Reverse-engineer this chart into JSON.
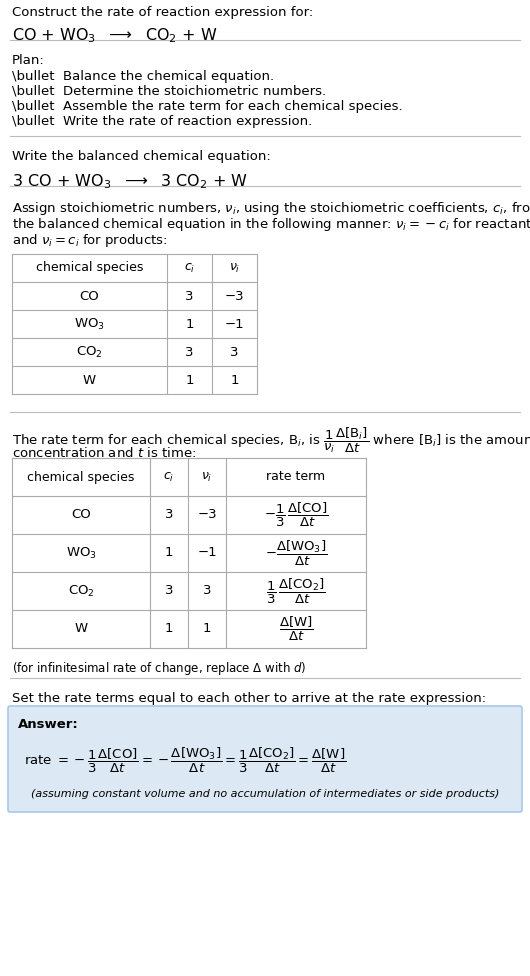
{
  "title_line1": "Construct the rate of reaction expression for:",
  "title_line2": "CO + WO$_3$  $\\longrightarrow$  CO$_2$ + W",
  "plan_header": "Plan:",
  "plan_items": [
    "\\bullet  Balance the chemical equation.",
    "\\bullet  Determine the stoichiometric numbers.",
    "\\bullet  Assemble the rate term for each chemical species.",
    "\\bullet  Write the rate of reaction expression."
  ],
  "balanced_header": "Write the balanced chemical equation:",
  "balanced_eq": "3 CO + WO$_3$  $\\longrightarrow$  3 CO$_2$ + W",
  "stoich_intro_lines": [
    "Assign stoichiometric numbers, $\\nu_i$, using the stoichiometric coefficients, $c_i$, from",
    "the balanced chemical equation in the following manner: $\\nu_i = -c_i$ for reactants",
    "and $\\nu_i = c_i$ for products:"
  ],
  "table1_headers": [
    "chemical species",
    "$c_i$",
    "$\\nu_i$"
  ],
  "table1_rows": [
    [
      "CO",
      "3",
      "−3"
    ],
    [
      "WO$_3$",
      "1",
      "−1"
    ],
    [
      "CO$_2$",
      "3",
      "3"
    ],
    [
      "W",
      "1",
      "1"
    ]
  ],
  "rate_intro_line1": "The rate term for each chemical species, B$_i$, is $\\dfrac{1}{\\nu_i}\\dfrac{\\Delta[\\mathrm{B}_i]}{\\Delta t}$ where [B$_i$] is the amount",
  "rate_intro_line2": "concentration and $t$ is time:",
  "table2_headers": [
    "chemical species",
    "$c_i$",
    "$\\nu_i$",
    "rate term"
  ],
  "table2_rows": [
    [
      "CO",
      "3",
      "−3",
      "$-\\dfrac{1}{3}\\,\\dfrac{\\Delta[\\mathrm{CO}]}{\\Delta t}$"
    ],
    [
      "WO$_3$",
      "1",
      "−1",
      "$-\\dfrac{\\Delta[\\mathrm{WO_3}]}{\\Delta t}$"
    ],
    [
      "CO$_2$",
      "3",
      "3",
      "$\\dfrac{1}{3}\\,\\dfrac{\\Delta[\\mathrm{CO_2}]}{\\Delta t}$"
    ],
    [
      "W",
      "1",
      "1",
      "$\\dfrac{\\Delta[\\mathrm{W}]}{\\Delta t}$"
    ]
  ],
  "infinitesimal_note": "(for infinitesimal rate of change, replace Δ with $d$)",
  "set_equal_intro": "Set the rate terms equal to each other to arrive at the rate expression:",
  "answer_label": "Answer:",
  "answer_eq": "rate $= -\\dfrac{1}{3}\\dfrac{\\Delta[\\mathrm{CO}]}{\\Delta t} = -\\dfrac{\\Delta[\\mathrm{WO_3}]}{\\Delta t} = \\dfrac{1}{3}\\dfrac{\\Delta[\\mathrm{CO_2}]}{\\Delta t} = \\dfrac{\\Delta[\\mathrm{W}]}{\\Delta t}$",
  "answer_note": "(assuming constant volume and no accumulation of intermediates or side products)",
  "bg_color": "#ffffff",
  "answer_box_color": "#dce9f5",
  "answer_box_edge": "#a8c8e8",
  "text_color": "#000000",
  "divider_color": "#bbbbbb",
  "table_line_color": "#aaaaaa",
  "font_size_body": 9.5,
  "font_size_eq": 11.5,
  "font_size_small": 8.5
}
